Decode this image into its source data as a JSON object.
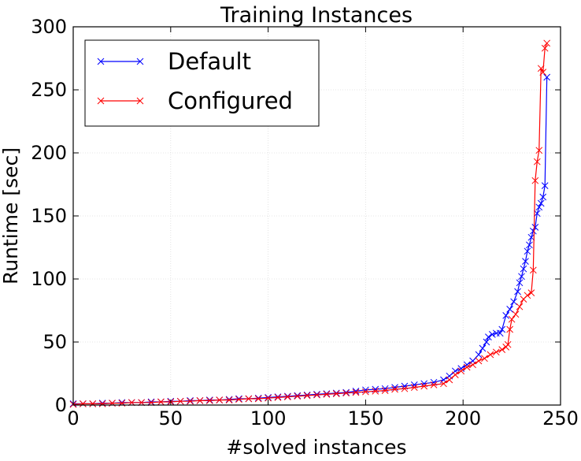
{
  "chart_data": {
    "type": "line",
    "title": "Training Instances",
    "xlabel": "#solved instances",
    "ylabel": "Runtime [sec]",
    "xlim": [
      0,
      250
    ],
    "xticks": [
      0,
      50,
      100,
      150,
      200,
      250
    ],
    "ylim": [
      0,
      300
    ],
    "yticks": [
      0,
      50,
      100,
      150,
      200,
      250,
      300
    ],
    "grid": true,
    "legend": "upper left",
    "series": [
      {
        "name": "Default",
        "color": "#0000ff",
        "x": [
          0,
          5,
          10,
          15,
          20,
          25,
          30,
          35,
          40,
          45,
          50,
          55,
          60,
          65,
          70,
          75,
          80,
          85,
          90,
          95,
          100,
          105,
          110,
          115,
          120,
          125,
          130,
          135,
          140,
          145,
          150,
          155,
          160,
          165,
          170,
          175,
          180,
          185,
          190,
          193,
          196,
          199,
          202,
          205,
          208,
          210,
          212,
          213,
          215,
          217,
          219,
          220,
          222,
          224,
          226,
          228,
          229,
          230,
          231,
          232,
          233,
          234,
          235,
          236,
          237,
          238,
          239,
          240,
          241,
          242,
          243
        ],
        "values": [
          1,
          1,
          1,
          1.5,
          1.5,
          2,
          2,
          2,
          2.5,
          2.5,
          3,
          3,
          3.5,
          3.5,
          4,
          4,
          4.5,
          5,
          5,
          5.5,
          6,
          6.5,
          7,
          7.5,
          8,
          8.5,
          9,
          9.5,
          10,
          11,
          12,
          12.5,
          13,
          14,
          15,
          16,
          17,
          18,
          20,
          23,
          27,
          29,
          32,
          35,
          40,
          45,
          50,
          54,
          56,
          57,
          57,
          60,
          71,
          76,
          82,
          90,
          97,
          102,
          108,
          114,
          122,
          127,
          133,
          138,
          141,
          152,
          157,
          160,
          165,
          174,
          260
        ]
      },
      {
        "name": "Configured",
        "color": "#ff0000",
        "x": [
          0,
          5,
          10,
          15,
          20,
          25,
          30,
          35,
          40,
          45,
          50,
          55,
          60,
          65,
          70,
          75,
          80,
          85,
          90,
          95,
          100,
          105,
          110,
          115,
          120,
          125,
          130,
          135,
          140,
          145,
          150,
          155,
          160,
          165,
          170,
          175,
          180,
          185,
          190,
          193,
          196,
          199,
          202,
          205,
          208,
          211,
          214,
          217,
          220,
          222,
          223,
          224,
          225,
          227,
          229,
          231,
          233,
          235,
          236,
          237,
          238,
          239,
          240,
          241,
          242,
          243
        ],
        "values": [
          0.5,
          1,
          1,
          1,
          1.5,
          1.5,
          2,
          2,
          2,
          2.5,
          2.5,
          3,
          3,
          3.5,
          3.5,
          4,
          4,
          4.5,
          5,
          5,
          5.5,
          6,
          6.5,
          7,
          7.5,
          8,
          8.5,
          9,
          9.5,
          10,
          10.5,
          11,
          11.5,
          12.5,
          13,
          14,
          15,
          16,
          17,
          20,
          24,
          27,
          30,
          32,
          35,
          37,
          40,
          42,
          44,
          46,
          48,
          60,
          68,
          72,
          78,
          84,
          87,
          89,
          107,
          178,
          193,
          202,
          267,
          264,
          283,
          287
        ]
      }
    ]
  }
}
